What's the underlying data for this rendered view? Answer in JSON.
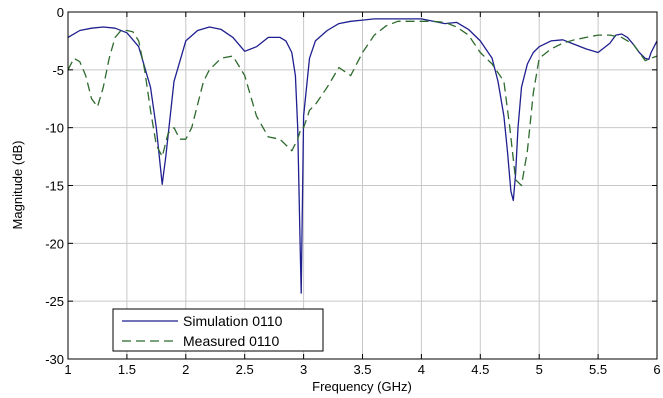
{
  "chart_data": {
    "type": "line",
    "title": "",
    "xlabel": "Frequency (GHz)",
    "ylabel": "Magnitude (dB)",
    "xlim": [
      1,
      6
    ],
    "ylim": [
      -30,
      0
    ],
    "xticks": [
      1,
      1.5,
      2,
      2.5,
      3,
      3.5,
      4,
      4.5,
      5,
      5.5,
      6
    ],
    "yticks": [
      0,
      -5,
      -10,
      -15,
      -20,
      -25,
      -30
    ],
    "xtick_labels": [
      "1",
      "1.5",
      "2",
      "2.5",
      "3",
      "3.5",
      "4",
      "4.5",
      "5",
      "5.5",
      "6"
    ],
    "ytick_labels": [
      "0",
      "-5",
      "-10",
      "-15",
      "-20",
      "-25",
      "-30"
    ],
    "grid": true,
    "legend_position": "bottom-left",
    "series": [
      {
        "name": "Simulation 0110",
        "color": "#1f1f8f",
        "style": "solid",
        "x": [
          1.0,
          1.1,
          1.2,
          1.3,
          1.4,
          1.5,
          1.6,
          1.7,
          1.75,
          1.8,
          1.83,
          1.9,
          2.0,
          2.1,
          2.2,
          2.3,
          2.4,
          2.5,
          2.6,
          2.7,
          2.8,
          2.85,
          2.9,
          2.93,
          2.95,
          2.97,
          2.98,
          3.0,
          3.05,
          3.1,
          3.2,
          3.3,
          3.4,
          3.5,
          3.6,
          3.7,
          3.8,
          3.9,
          4.0,
          4.1,
          4.2,
          4.3,
          4.4,
          4.5,
          4.6,
          4.65,
          4.7,
          4.73,
          4.76,
          4.78,
          4.8,
          4.82,
          4.85,
          4.9,
          4.95,
          5.0,
          5.1,
          5.2,
          5.3,
          5.4,
          5.5,
          5.6,
          5.65,
          5.7,
          5.75,
          5.8,
          5.85,
          5.9,
          5.93,
          5.95,
          6.0
        ],
        "y": [
          -2.2,
          -1.6,
          -1.4,
          -1.3,
          -1.4,
          -1.8,
          -3.0,
          -6.5,
          -10.0,
          -14.9,
          -12.5,
          -6.0,
          -2.5,
          -1.6,
          -1.3,
          -1.5,
          -2.2,
          -3.4,
          -3.0,
          -2.2,
          -2.2,
          -2.5,
          -3.5,
          -5.5,
          -10.0,
          -20.0,
          -24.3,
          -9.0,
          -4.0,
          -2.5,
          -1.6,
          -1.0,
          -0.8,
          -0.7,
          -0.6,
          -0.6,
          -0.6,
          -0.6,
          -0.6,
          -0.8,
          -1.0,
          -0.9,
          -1.5,
          -2.5,
          -4.0,
          -6.0,
          -9.0,
          -12.0,
          -15.5,
          -16.3,
          -14.0,
          -10.0,
          -6.5,
          -4.5,
          -3.5,
          -3.0,
          -2.5,
          -2.4,
          -2.8,
          -3.2,
          -3.5,
          -2.7,
          -2.0,
          -1.9,
          -2.2,
          -2.8,
          -3.5,
          -4.0,
          -4.1,
          -3.5,
          -2.5
        ]
      },
      {
        "name": "Measured 0110",
        "color": "#2e6b2e",
        "style": "dashed",
        "x": [
          1.0,
          1.05,
          1.1,
          1.15,
          1.2,
          1.25,
          1.3,
          1.35,
          1.4,
          1.45,
          1.5,
          1.55,
          1.6,
          1.65,
          1.7,
          1.75,
          1.8,
          1.85,
          1.9,
          1.95,
          2.0,
          2.05,
          2.1,
          2.15,
          2.2,
          2.3,
          2.4,
          2.5,
          2.6,
          2.7,
          2.8,
          2.9,
          2.95,
          2.98,
          3.0,
          3.05,
          3.1,
          3.2,
          3.3,
          3.4,
          3.5,
          3.6,
          3.7,
          3.8,
          3.9,
          4.0,
          4.1,
          4.2,
          4.3,
          4.4,
          4.5,
          4.6,
          4.7,
          4.75,
          4.8,
          4.85,
          4.9,
          4.95,
          5.0,
          5.1,
          5.2,
          5.3,
          5.4,
          5.5,
          5.6,
          5.7,
          5.8,
          5.85,
          5.9,
          5.95,
          6.0
        ],
        "y": [
          -5.0,
          -4.0,
          -4.3,
          -5.5,
          -7.5,
          -8.2,
          -6.5,
          -4.0,
          -2.2,
          -1.6,
          -1.6,
          -1.7,
          -2.5,
          -5.0,
          -8.5,
          -11.5,
          -12.5,
          -10.5,
          -10.0,
          -11.0,
          -11.0,
          -10.0,
          -8.0,
          -6.0,
          -5.0,
          -4.0,
          -3.8,
          -5.5,
          -9.0,
          -10.8,
          -11.0,
          -12.0,
          -11.0,
          -10.0,
          -10.0,
          -8.5,
          -8.0,
          -6.5,
          -4.8,
          -5.5,
          -3.5,
          -2.0,
          -1.2,
          -0.8,
          -0.8,
          -0.8,
          -0.8,
          -0.9,
          -1.3,
          -2.0,
          -3.5,
          -4.5,
          -6.0,
          -10.0,
          -14.5,
          -15.0,
          -12.0,
          -7.0,
          -4.0,
          -3.2,
          -2.7,
          -2.4,
          -2.2,
          -2.0,
          -2.0,
          -2.2,
          -2.8,
          -3.5,
          -4.2,
          -4.0,
          -3.8
        ]
      }
    ]
  }
}
